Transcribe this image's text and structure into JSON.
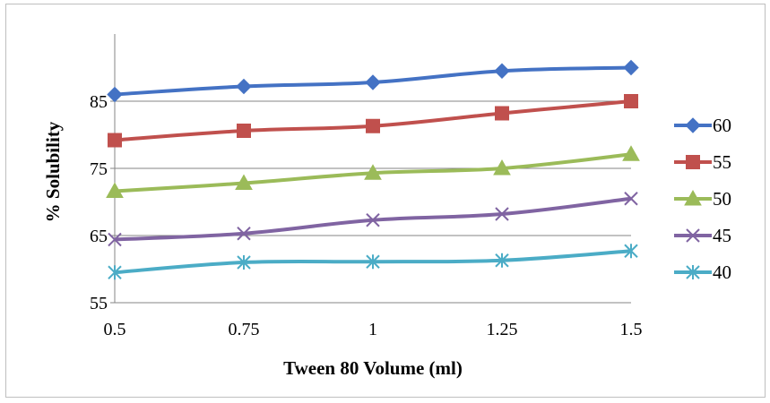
{
  "chart_data": {
    "type": "line",
    "title": "",
    "xlabel": "Tween 80 Volume (ml)",
    "ylabel": "% Solubility",
    "x": [
      "0.5",
      "0.75",
      "1",
      "1.25",
      "1.5"
    ],
    "ylim": [
      55,
      95
    ],
    "yticks": [
      "55",
      "65",
      "75",
      "85"
    ],
    "grid": "horizontal",
    "legend": "right",
    "series": [
      {
        "name": "60",
        "values": [
          86.0,
          87.2,
          87.8,
          89.5,
          90.0
        ],
        "color": "#4472c4",
        "marker": "diamond"
      },
      {
        "name": "55",
        "values": [
          79.2,
          80.6,
          81.3,
          83.2,
          85.0
        ],
        "color": "#c0504d",
        "marker": "square"
      },
      {
        "name": "50",
        "values": [
          71.6,
          72.8,
          74.3,
          75.0,
          77.1
        ],
        "color": "#9bbb59",
        "marker": "triangle"
      },
      {
        "name": "45",
        "values": [
          64.4,
          65.3,
          67.3,
          68.2,
          70.5
        ],
        "color": "#8064a2",
        "marker": "x"
      },
      {
        "name": "40",
        "values": [
          59.5,
          61.0,
          61.1,
          61.3,
          62.7
        ],
        "color": "#4bacc6",
        "marker": "star"
      }
    ]
  }
}
